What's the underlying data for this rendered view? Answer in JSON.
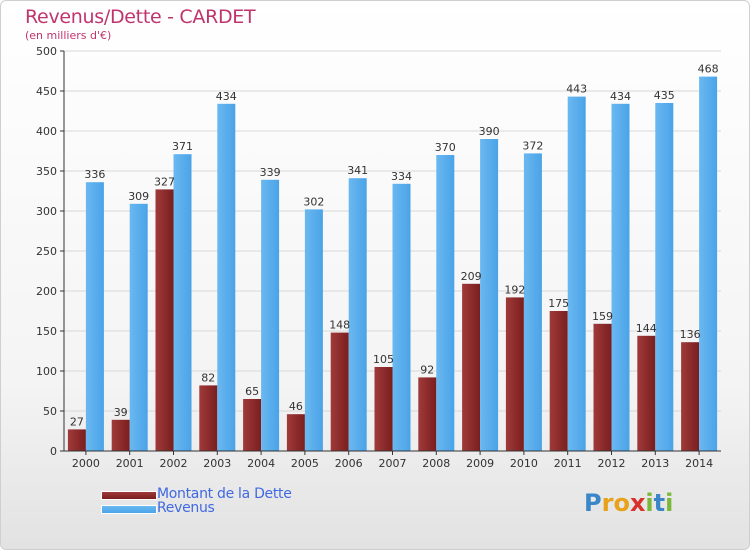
{
  "header": {
    "title": "Revenus/Dette - CARDET",
    "subtitle": "(en milliers d'€)"
  },
  "legend": {
    "debt_label": "Montant de la Dette",
    "revenue_label": "Revenus"
  },
  "logo": {
    "text": "Proxiti",
    "letters": [
      "P",
      "r",
      "o",
      "x",
      "i",
      "t",
      "i"
    ],
    "colors": [
      "#3a86c8",
      "#e8a21a",
      "#e8a21a",
      "#d8332a",
      "#7bb83a",
      "#3a86c8",
      "#7bb83a"
    ]
  },
  "colors": {
    "debt": "#7a1e1e",
    "debt_light": "#a03a3a",
    "revenue": "#4aa3e8",
    "revenue_light": "#6ab8f0",
    "axis": "#333333",
    "grid": "#d8d8d8"
  },
  "chart_data": {
    "type": "bar",
    "categories": [
      "2000",
      "2001",
      "2002",
      "2003",
      "2004",
      "2005",
      "2006",
      "2007",
      "2008",
      "2009",
      "2010",
      "2011",
      "2012",
      "2013",
      "2014"
    ],
    "series": [
      {
        "name": "Montant de la Dette",
        "values": [
          27,
          39,
          327,
          82,
          65,
          46,
          148,
          105,
          92,
          209,
          192,
          175,
          159,
          144,
          136
        ]
      },
      {
        "name": "Revenus",
        "values": [
          336,
          309,
          371,
          434,
          339,
          302,
          341,
          334,
          370,
          390,
          372,
          443,
          434,
          435,
          468
        ]
      }
    ],
    "ylim": [
      0,
      500
    ],
    "yticks": [
      0,
      50,
      100,
      150,
      200,
      250,
      300,
      350,
      400,
      450,
      500
    ],
    "grid": true,
    "legend": "bottom-left"
  }
}
